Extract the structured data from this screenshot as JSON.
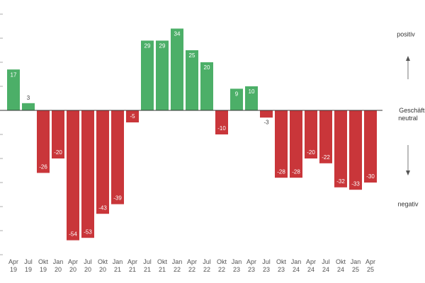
{
  "chart_data": {
    "type": "bar",
    "categories": [
      "Apr 19",
      "Jul 19",
      "Okt 19",
      "Jan 20",
      "Apr 20",
      "Jul 20",
      "Okt 20",
      "Jan 21",
      "Apr 21",
      "Jul 21",
      "Okt 21",
      "Jan 22",
      "Apr 22",
      "Jul 22",
      "Okt 22",
      "Jan 23",
      "Apr 23",
      "Jul 23",
      "Okt 23",
      "Jan 24",
      "Apr 24",
      "Jul 24",
      "Okt 24",
      "Jan 25",
      "Apr 25"
    ],
    "values": [
      17,
      3,
      -26,
      -20,
      -54,
      -53,
      -43,
      -39,
      -5,
      29,
      29,
      34,
      25,
      20,
      -10,
      9,
      10,
      -3,
      -28,
      -28,
      -20,
      -22,
      -32,
      -33,
      -30
    ],
    "positive_color": "#4caf68",
    "negative_color": "#c9363a",
    "ylim": [
      -60,
      40
    ],
    "yticks": [
      -60,
      -50,
      -40,
      -30,
      -20,
      -10,
      0,
      10,
      20,
      30,
      40
    ],
    "annotations": {
      "top": "positiv",
      "middle": "Geschäftsklima neutral",
      "bottom": "negativ"
    }
  }
}
